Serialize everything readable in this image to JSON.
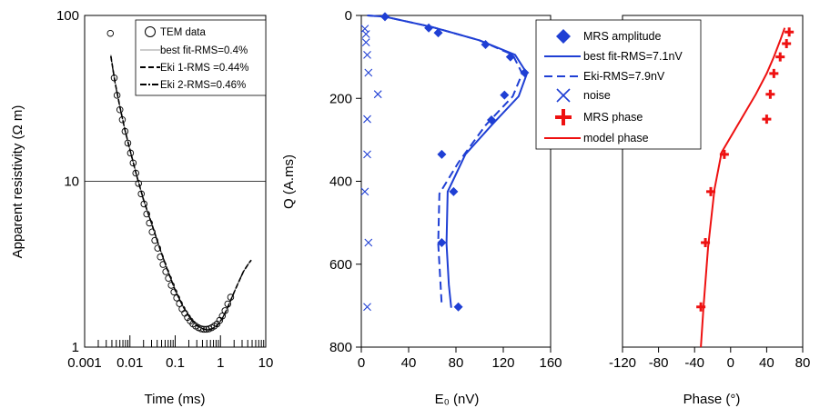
{
  "chart_data": [
    {
      "type": "scatter",
      "xlabel": "Time (ms)",
      "ylabel": "Apparent resistivity (Ω m)",
      "x_scale": "log",
      "y_scale": "log",
      "xlim": [
        0.001,
        10
      ],
      "ylim": [
        1,
        100
      ],
      "x_ticks": [
        0.001,
        0.01,
        0.1,
        1,
        10
      ],
      "x_tick_labels": [
        "0.001",
        "0.01",
        "0.1",
        "1",
        "10"
      ],
      "y_ticks": [
        1,
        10,
        100
      ],
      "y_tick_labels": [
        "1",
        "10",
        "100"
      ],
      "legend_position": "top-right",
      "legend": [
        {
          "label": "TEM data",
          "marker": "open-circle"
        },
        {
          "label": "best fit-RMS=0.4%",
          "style": "thin-solid"
        },
        {
          "label": "Eki 1-RMS =0.44%",
          "style": "dashed"
        },
        {
          "label": "Eki 2-RMS=0.46%",
          "style": "dash-dot"
        }
      ],
      "series": [
        {
          "name": "TEM data",
          "style": "open-circle",
          "x": [
            0.0037,
            0.0045,
            0.0052,
            0.006,
            0.0068,
            0.0078,
            0.009,
            0.0103,
            0.0118,
            0.0135,
            0.0155,
            0.0178,
            0.0205,
            0.0235,
            0.027,
            0.031,
            0.0355,
            0.041,
            0.047,
            0.054,
            0.062,
            0.071,
            0.082,
            0.094,
            0.108,
            0.124,
            0.142,
            0.163,
            0.187,
            0.215,
            0.247,
            0.283,
            0.325,
            0.373,
            0.428,
            0.49,
            0.56,
            0.64,
            0.73,
            0.84,
            0.96,
            1.1,
            1.26,
            1.45,
            1.68
          ],
          "y": [
            78,
            42,
            33,
            27,
            23.5,
            20,
            17,
            14.8,
            12.9,
            11.2,
            9.7,
            8.4,
            7.3,
            6.35,
            5.6,
            4.95,
            4.4,
            3.95,
            3.5,
            3.15,
            2.85,
            2.6,
            2.36,
            2.15,
            1.98,
            1.83,
            1.7,
            1.6,
            1.51,
            1.44,
            1.38,
            1.34,
            1.31,
            1.29,
            1.28,
            1.28,
            1.29,
            1.31,
            1.34,
            1.38,
            1.45,
            1.54,
            1.66,
            1.82,
            2.0
          ]
        },
        {
          "name": "best fit-RMS=0.4%",
          "style": "thin-solid",
          "x": [
            0.0038,
            0.0047,
            0.006,
            0.0078,
            0.01,
            0.014,
            0.02,
            0.03,
            0.045,
            0.065,
            0.1,
            0.15,
            0.22,
            0.3,
            0.4,
            0.52,
            0.65,
            0.85,
            1.1,
            1.4,
            1.8,
            2.4,
            3.2,
            4.2,
            4.8
          ],
          "y": [
            58,
            40,
            28.5,
            20.5,
            15.6,
            11.0,
            7.8,
            5.6,
            4.0,
            3.0,
            2.2,
            1.75,
            1.48,
            1.35,
            1.29,
            1.27,
            1.29,
            1.35,
            1.49,
            1.7,
            2.0,
            2.4,
            2.85,
            3.2,
            3.35
          ]
        },
        {
          "name": "Eki 1-RMS =0.44%",
          "style": "dashed",
          "x": [
            0.0038,
            0.0047,
            0.006,
            0.0078,
            0.01,
            0.014,
            0.02,
            0.03,
            0.045,
            0.065,
            0.1,
            0.15,
            0.22,
            0.3,
            0.4,
            0.52,
            0.65,
            0.85,
            1.1,
            1.4,
            1.8,
            2.4,
            3.2,
            4.2,
            4.8
          ],
          "y": [
            57,
            39.5,
            28.2,
            20.3,
            15.5,
            10.9,
            7.75,
            5.58,
            4.0,
            3.0,
            2.2,
            1.75,
            1.48,
            1.35,
            1.29,
            1.27,
            1.29,
            1.35,
            1.49,
            1.7,
            2.0,
            2.4,
            2.85,
            3.2,
            3.35
          ]
        },
        {
          "name": "Eki 2-RMS=0.46%",
          "style": "dash-dot",
          "x": [
            0.0038,
            0.0047,
            0.006,
            0.0078,
            0.01,
            0.014,
            0.02,
            0.03,
            0.045,
            0.065,
            0.1,
            0.15,
            0.22,
            0.3,
            0.4,
            0.52,
            0.65,
            0.85,
            1.1,
            1.4,
            1.8,
            2.4,
            3.2,
            4.2,
            4.8
          ],
          "y": [
            56.5,
            39.2,
            28.0,
            20.2,
            15.4,
            10.9,
            7.7,
            5.56,
            3.99,
            3.0,
            2.2,
            1.75,
            1.48,
            1.35,
            1.29,
            1.27,
            1.29,
            1.35,
            1.49,
            1.7,
            2.0,
            2.4,
            2.85,
            3.2,
            3.35
          ]
        }
      ]
    },
    {
      "type": "line",
      "xlabel": "E₀ (nV)",
      "ylabel": "Q (A.ms)",
      "xlim": [
        0,
        160
      ],
      "ylim": [
        800,
        0
      ],
      "y_inverted": true,
      "x_ticks": [
        0,
        40,
        80,
        120,
        160
      ],
      "y_ticks": [
        0,
        200,
        400,
        600,
        800
      ],
      "color": "#1f3fd4",
      "legend_position": "top-right",
      "legend": [
        {
          "label": "MRS amplitude",
          "marker": "filled-diamond",
          "color": "#1f3fd4"
        },
        {
          "label": "best fit-RMS=7.1nV",
          "style": "solid",
          "color": "#1f3fd4"
        },
        {
          "label": "Eki-RMS=7.9nV",
          "style": "dashed",
          "color": "#1f3fd4"
        },
        {
          "label": "noise",
          "marker": "x",
          "color": "#1f3fd4"
        },
        {
          "label": "MRS phase",
          "marker": "plus",
          "color": "#ee1111"
        },
        {
          "label": "model phase",
          "style": "solid",
          "color": "#ee1111"
        }
      ],
      "series": [
        {
          "name": "MRS amplitude",
          "style": "filled-diamond",
          "x": [
            20,
            57,
            65,
            105,
            126,
            138,
            121,
            110,
            68,
            78,
            68,
            82
          ],
          "y": [
            3,
            30,
            42,
            70,
            100,
            138,
            192,
            252,
            335,
            425,
            548,
            703
          ]
        },
        {
          "name": "best fit-RMS=7.1nV",
          "style": "solid",
          "x": [
            5,
            20,
            60,
            100,
            130,
            140,
            133,
            110,
            88,
            73,
            72,
            74,
            76
          ],
          "y": [
            0,
            3,
            28,
            60,
            95,
            140,
            195,
            265,
            335,
            425,
            550,
            650,
            705
          ]
        },
        {
          "name": "Eki-RMS=7.9nV",
          "style": "dashed",
          "x": [
            5,
            20,
            60,
            100,
            128,
            136,
            128,
            105,
            82,
            66,
            65,
            67,
            68
          ],
          "y": [
            0,
            3,
            28,
            60,
            95,
            140,
            195,
            265,
            355,
            430,
            550,
            650,
            700
          ]
        },
        {
          "name": "noise",
          "style": "x",
          "x": [
            3,
            4,
            4,
            5,
            6,
            14,
            5,
            5,
            3,
            6,
            5
          ],
          "y": [
            32,
            45,
            65,
            95,
            138,
            190,
            250,
            335,
            425,
            548,
            703
          ]
        }
      ]
    },
    {
      "type": "line",
      "xlabel": "Phase (°)",
      "xlim": [
        -120,
        80
      ],
      "ylim": [
        800,
        0
      ],
      "y_inverted": true,
      "x_ticks": [
        -120,
        -80,
        -40,
        0,
        40,
        80
      ],
      "color": "#ee1111",
      "series": [
        {
          "name": "MRS phase",
          "style": "plus",
          "x": [
            65,
            62,
            55,
            48,
            44,
            40,
            -7,
            -22,
            -28,
            -33
          ],
          "y": [
            40,
            68,
            100,
            140,
            190,
            250,
            335,
            425,
            548,
            703
          ]
        },
        {
          "name": "model phase",
          "style": "solid",
          "x": [
            60,
            55,
            48,
            40,
            28,
            -10,
            -18,
            -25,
            -30,
            -33
          ],
          "y": [
            30,
            60,
            100,
            140,
            190,
            330,
            420,
            560,
            700,
            800
          ]
        }
      ]
    }
  ]
}
